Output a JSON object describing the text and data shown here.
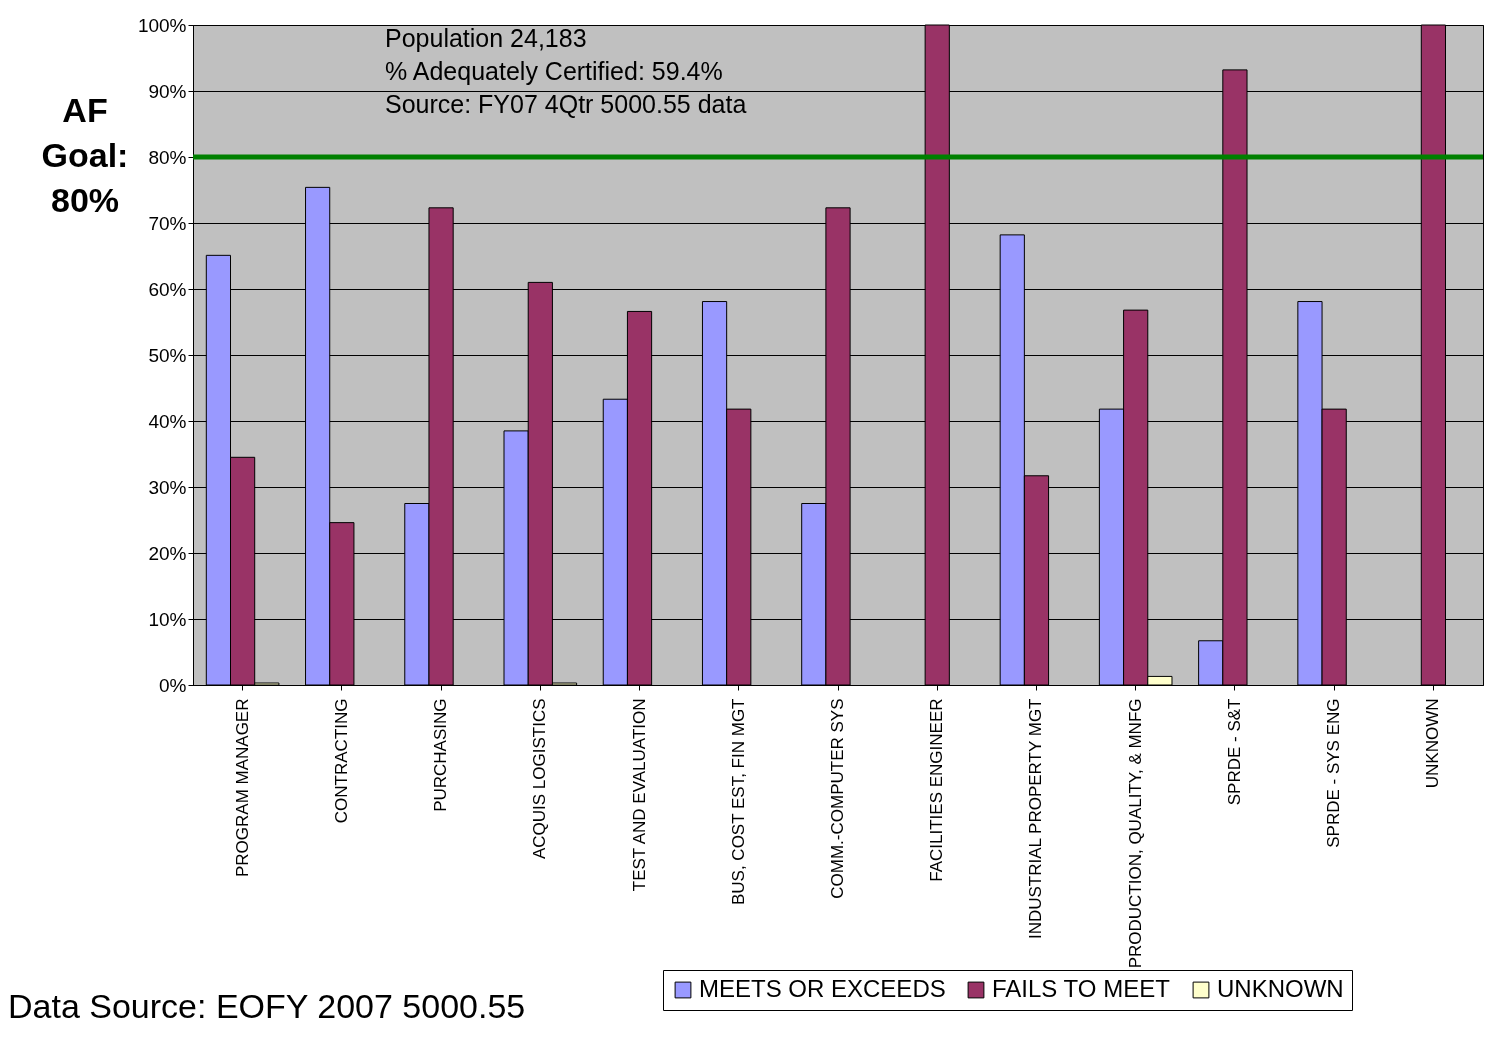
{
  "chart_data": {
    "type": "bar",
    "categories": [
      "PROGRAM MANAGER",
      "CONTRACTING",
      "PURCHASING",
      "ACQUIS LOGISTICS",
      "TEST AND EVALUATION",
      "BUS, COST EST, FIN MGT",
      "COMM.-COMPUTER SYS",
      "FACILITIES ENGINEER",
      "INDUSTRIAL PROPERTY MGT",
      "PRODUCTION, QUALITY, & MNFG",
      "SPRDE - S&T",
      "SPRDE - SYS ENG",
      "UNKNOWN"
    ],
    "series": [
      {
        "name": "MEETS OR EXCEEDS",
        "color": "#9999ff",
        "values": [
          65.1,
          75.4,
          27.5,
          38.5,
          43.3,
          58.1,
          27.5,
          null,
          68.2,
          41.8,
          6.7,
          58.1,
          null
        ]
      },
      {
        "name": "FAILS TO MEET",
        "color": "#993366",
        "values": [
          34.5,
          24.6,
          72.3,
          61.0,
          56.6,
          41.8,
          72.3,
          100,
          31.7,
          56.8,
          93.2,
          41.8,
          100
        ]
      },
      {
        "name": "UNKNOWN",
        "color": "#ffffcc",
        "values": [
          0.3,
          null,
          null,
          0.3,
          null,
          null,
          null,
          null,
          null,
          1.3,
          null,
          null,
          null
        ]
      }
    ],
    "ylim": [
      0,
      100
    ],
    "yticks": [
      {
        "value": 0,
        "label": "0%"
      },
      {
        "value": 10,
        "label": "10%"
      },
      {
        "value": 20,
        "label": "20%"
      },
      {
        "value": 30,
        "label": "30%"
      },
      {
        "value": 40,
        "label": "40%"
      },
      {
        "value": 50,
        "label": "50%"
      },
      {
        "value": 60,
        "label": "60%"
      },
      {
        "value": 70,
        "label": "70%"
      },
      {
        "value": 80,
        "label": "80%"
      },
      {
        "value": 90,
        "label": "90%"
      },
      {
        "value": 100,
        "label": "100%"
      }
    ],
    "grid": "y",
    "legend": "bottom",
    "ref_lines": [
      {
        "axis": "y",
        "value": 80,
        "label": "AF Goal: 80%",
        "color": "#008000"
      }
    ],
    "annotations": [
      "Population 24,183",
      "% Adequately Certified: 59.4%",
      "Source: FY07 4Qtr 5000.55 data",
      "Data Source: EOFY 2007 5000.55"
    ]
  }
}
